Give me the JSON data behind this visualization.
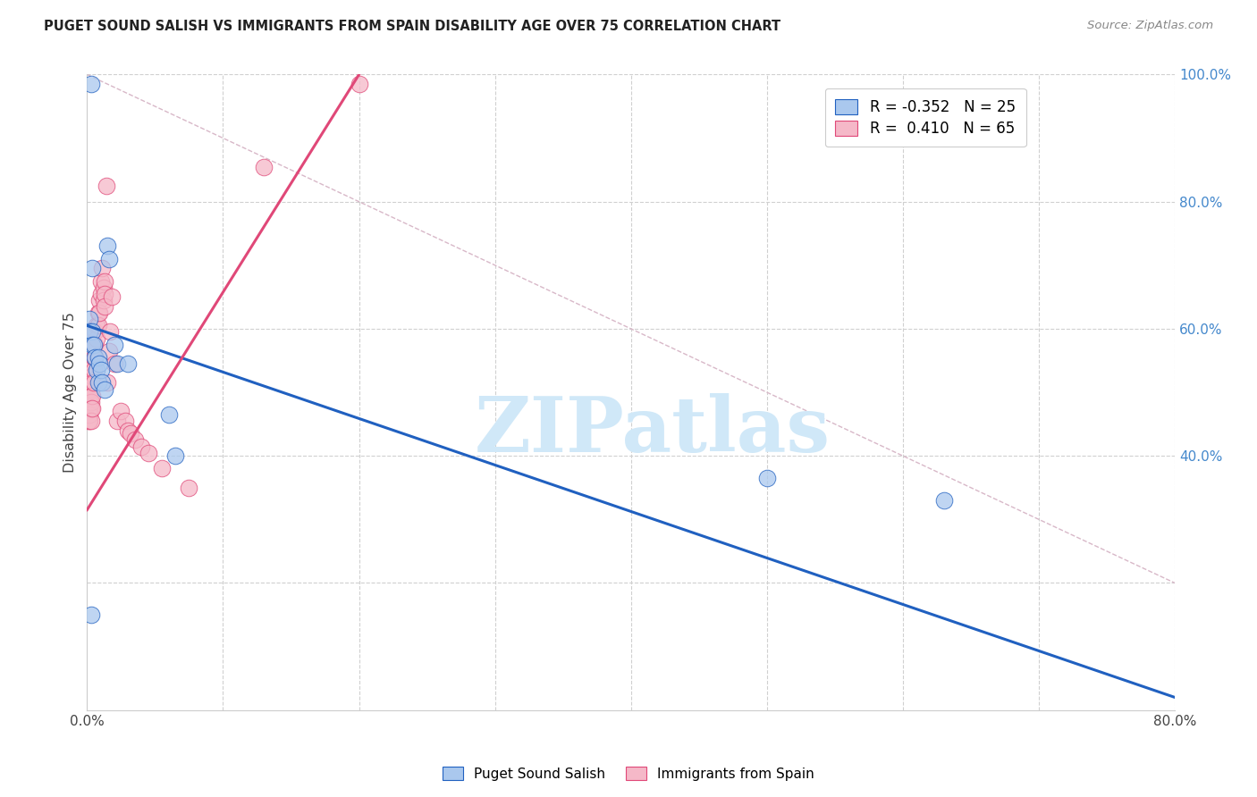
{
  "title": "PUGET SOUND SALISH VS IMMIGRANTS FROM SPAIN DISABILITY AGE OVER 75 CORRELATION CHART",
  "source": "Source: ZipAtlas.com",
  "ylabel": "Disability Age Over 75",
  "xlim": [
    0,
    0.8
  ],
  "ylim": [
    0,
    1.0
  ],
  "blue_color": "#aac8ee",
  "pink_color": "#f5b8c8",
  "blue_line_color": "#2060c0",
  "pink_line_color": "#e04878",
  "blue_scatter_x": [
    0.002,
    0.002,
    0.004,
    0.004,
    0.005,
    0.006,
    0.007,
    0.008,
    0.008,
    0.009,
    0.01,
    0.011,
    0.013,
    0.015,
    0.016,
    0.02,
    0.022,
    0.03,
    0.06,
    0.065,
    0.5,
    0.63,
    0.003,
    0.003,
    0.004
  ],
  "blue_scatter_y": [
    0.615,
    0.595,
    0.595,
    0.575,
    0.575,
    0.555,
    0.535,
    0.555,
    0.515,
    0.545,
    0.535,
    0.515,
    0.505,
    0.73,
    0.71,
    0.575,
    0.545,
    0.545,
    0.465,
    0.4,
    0.365,
    0.33,
    0.985,
    0.15,
    0.695
  ],
  "pink_scatter_x": [
    0.001,
    0.001,
    0.001,
    0.001,
    0.001,
    0.001,
    0.002,
    0.002,
    0.002,
    0.002,
    0.002,
    0.002,
    0.002,
    0.003,
    0.003,
    0.003,
    0.003,
    0.003,
    0.003,
    0.003,
    0.003,
    0.004,
    0.004,
    0.004,
    0.004,
    0.004,
    0.005,
    0.005,
    0.005,
    0.005,
    0.006,
    0.006,
    0.006,
    0.007,
    0.007,
    0.008,
    0.008,
    0.009,
    0.009,
    0.01,
    0.01,
    0.011,
    0.012,
    0.012,
    0.013,
    0.013,
    0.013,
    0.014,
    0.015,
    0.016,
    0.017,
    0.018,
    0.02,
    0.022,
    0.025,
    0.028,
    0.03,
    0.032,
    0.035,
    0.04,
    0.045,
    0.055,
    0.075,
    0.13,
    0.2
  ],
  "pink_scatter_y": [
    0.515,
    0.505,
    0.495,
    0.485,
    0.475,
    0.455,
    0.515,
    0.505,
    0.495,
    0.485,
    0.475,
    0.465,
    0.455,
    0.535,
    0.525,
    0.515,
    0.505,
    0.495,
    0.485,
    0.475,
    0.455,
    0.545,
    0.525,
    0.515,
    0.495,
    0.475,
    0.575,
    0.555,
    0.535,
    0.515,
    0.595,
    0.575,
    0.555,
    0.605,
    0.585,
    0.625,
    0.605,
    0.645,
    0.625,
    0.675,
    0.655,
    0.695,
    0.665,
    0.645,
    0.675,
    0.655,
    0.635,
    0.825,
    0.515,
    0.565,
    0.595,
    0.65,
    0.545,
    0.455,
    0.47,
    0.455,
    0.44,
    0.435,
    0.425,
    0.415,
    0.405,
    0.38,
    0.35,
    0.855,
    0.985
  ],
  "watermark_text": "ZIPatlas",
  "watermark_color": "#d0e8f8",
  "legend_blue_label": "R = -0.352   N = 25",
  "legend_pink_label": "R =  0.410   N = 65",
  "blue_trend_x0": 0.0,
  "blue_trend_y0": 0.605,
  "blue_trend_x1": 0.8,
  "blue_trend_y1": 0.02,
  "pink_trend_x0": 0.0,
  "pink_trend_y0": 0.315,
  "pink_trend_x1": 0.2,
  "pink_trend_y1": 1.0,
  "diag_line_x0": 0.0,
  "diag_line_y0": 1.0,
  "diag_line_x1": 0.8,
  "diag_line_y1": 0.2
}
